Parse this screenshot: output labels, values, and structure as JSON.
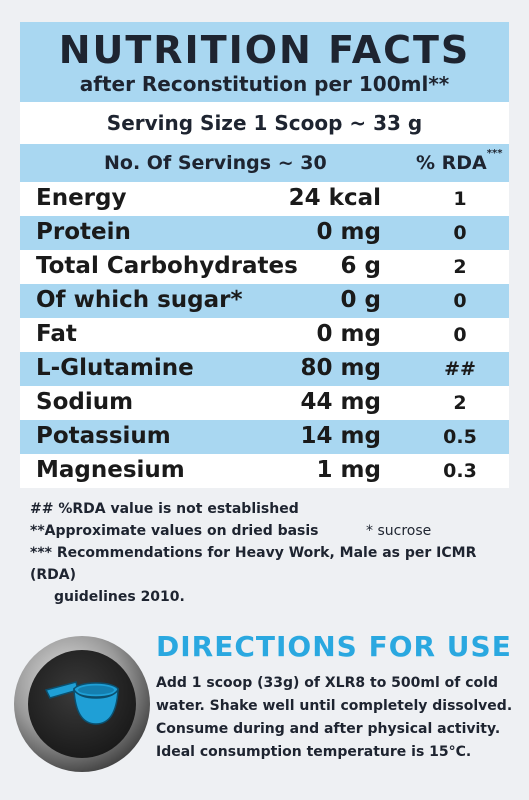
{
  "header": {
    "title": "NUTRITION FACTS",
    "subtitle": "after Reconstitution per 100ml**"
  },
  "serving_size": "Serving Size 1 Scoop ~ 33 g",
  "servings": {
    "label": "No. Of Servings ~ 30",
    "rda_label": "% RDA",
    "rda_marker": "***"
  },
  "rows": [
    {
      "name": "Energy",
      "amount": "24 kcal",
      "rda": "1"
    },
    {
      "name": "Protein",
      "amount": "0 mg",
      "rda": "0"
    },
    {
      "name": "Total Carbohydrates",
      "amount": "6 g",
      "rda": "2"
    },
    {
      "name": "Of which sugar*",
      "amount": "0 g",
      "rda": "0"
    },
    {
      "name": "Fat",
      "amount": "0 mg",
      "rda": "0"
    },
    {
      "name": "L-Glutamine",
      "amount": "80 mg",
      "rda": "##"
    },
    {
      "name": "Sodium",
      "amount": "44 mg",
      "rda": "2"
    },
    {
      "name": "Potassium",
      "amount": "14 mg",
      "rda": "0.5"
    },
    {
      "name": "Magnesium",
      "amount": "1 mg",
      "rda": "0.3"
    }
  ],
  "notes": {
    "note1": "## %RDA value is not established",
    "note2": "**Approximate values on dried basis",
    "sucrose": "* sucrose",
    "note3_line1": "*** Recommendations for Heavy Work, Male as per ICMR (RDA)",
    "note3_line2": "guidelines 2010."
  },
  "directions": {
    "title": "DIRECTIONS FOR USE",
    "lines": [
      "Add 1 scoop (33g) of XLR8 to 500ml of cold",
      "water. Shake well until completely dissolved.",
      "Consume during and after physical activity.",
      "Ideal consumption temperature is 15°C."
    ]
  },
  "colors": {
    "accent_blue": "#a9d7f1",
    "title_blue": "#2aa8e0",
    "scoop": "#1f9fd6"
  },
  "icons": {
    "scoop": "scoop-icon"
  }
}
